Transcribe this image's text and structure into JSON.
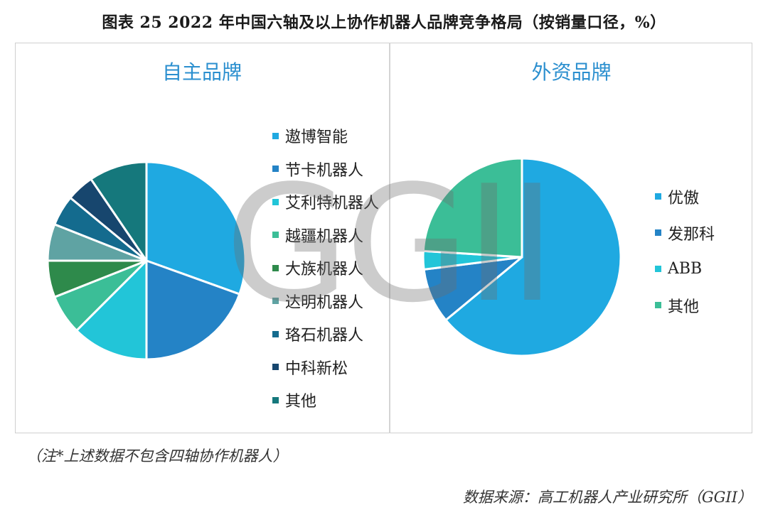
{
  "title": "图表 25  2022 年中国六轴及以上协作机器人品牌竞争格局（按销量口径，%）",
  "watermark": "GGII",
  "note": "（注*上述数据不包含四轴协作机器人）",
  "source": "数据来源：高工机器人产业研究所（GGII）",
  "chart_data": [
    {
      "type": "pie",
      "title": "自主品牌",
      "legend_position": "right",
      "categories": [
        "遨博智能",
        "节卡机器人",
        "艾利特机器人",
        "越疆机器人",
        "大族机器人",
        "达明机器人",
        "珞石机器人",
        "中科新松",
        "其他"
      ],
      "values": [
        30.5,
        19.5,
        12.5,
        6.5,
        6.0,
        6.0,
        5.0,
        4.5,
        9.5
      ],
      "colors": [
        "#1FA9E1",
        "#2483C6",
        "#22C5D8",
        "#3BBE97",
        "#2E8A4B",
        "#5FA3A3",
        "#146B8E",
        "#17466E",
        "#15787C"
      ]
    },
    {
      "type": "pie",
      "title": "外资品牌",
      "legend_position": "right",
      "categories": [
        "优傲",
        "发那科",
        "ABB",
        "其他"
      ],
      "values": [
        64,
        9,
        3,
        24
      ],
      "colors": [
        "#1FA9E1",
        "#2483C6",
        "#22C5D8",
        "#3BBE97"
      ]
    }
  ]
}
